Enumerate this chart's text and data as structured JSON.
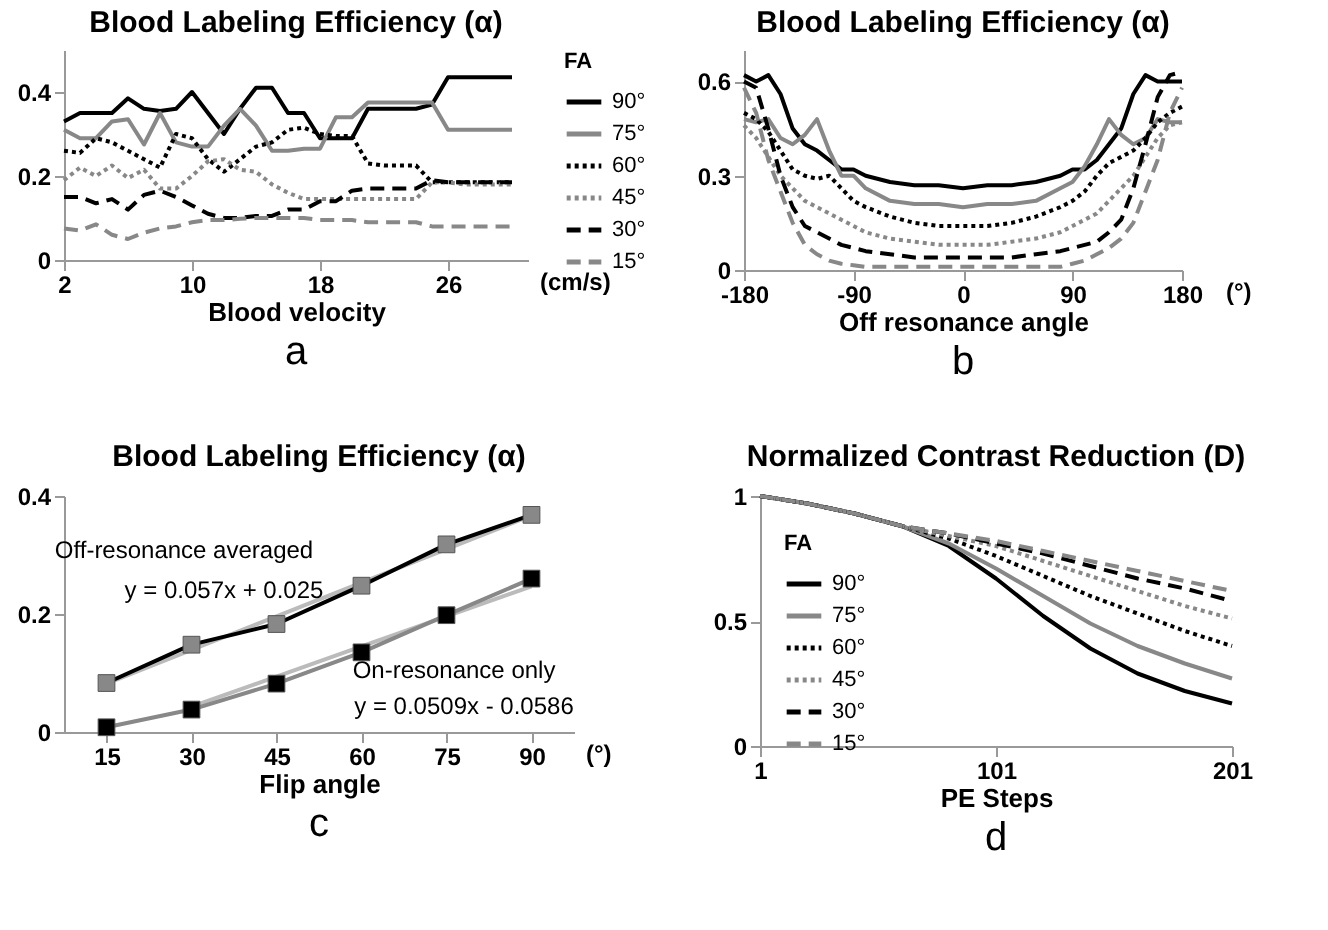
{
  "chart_data": [
    {
      "type": "line",
      "title": "Blood Labeling Efficiency (α)",
      "xlabel": "Blood velocity",
      "legend_title": "FA",
      "legend": "right",
      "xlim": [
        2,
        31
      ],
      "xticks": [
        2,
        10,
        18,
        26
      ],
      "ylim": [
        0,
        0.5
      ],
      "yticks": [
        0,
        0.2,
        0.4
      ],
      "annotations": [
        "(cm/s)",
        "a"
      ],
      "x": [
        2,
        3,
        4,
        5,
        6,
        7,
        8,
        9,
        10,
        11,
        12,
        13,
        14,
        15,
        16,
        17,
        18,
        19,
        20,
        21,
        22,
        23,
        24,
        25,
        26,
        27,
        28,
        29,
        30
      ],
      "series": [
        {
          "name": "90°",
          "color": "#000000",
          "line_style": "solid",
          "values": [
            0.33,
            0.35,
            0.35,
            0.35,
            0.385,
            0.36,
            0.355,
            0.36,
            0.4,
            0.35,
            0.3,
            0.36,
            0.41,
            0.41,
            0.35,
            0.35,
            0.29,
            0.29,
            0.29,
            0.36,
            0.36,
            0.36,
            0.36,
            0.37,
            0.435,
            0.435,
            0.435,
            0.435,
            0.435
          ]
        },
        {
          "name": "75°",
          "color": "#888888",
          "line_style": "solid",
          "values": [
            0.31,
            0.29,
            0.29,
            0.33,
            0.335,
            0.275,
            0.35,
            0.28,
            0.27,
            0.27,
            0.32,
            0.36,
            0.32,
            0.26,
            0.26,
            0.265,
            0.265,
            0.34,
            0.34,
            0.375,
            0.375,
            0.375,
            0.375,
            0.375,
            0.31,
            0.31,
            0.31,
            0.31,
            0.31
          ]
        },
        {
          "name": "60°",
          "color": "#000000",
          "line_style": "dotted",
          "values": [
            0.26,
            0.255,
            0.29,
            0.28,
            0.26,
            0.24,
            0.22,
            0.3,
            0.29,
            0.24,
            0.21,
            0.24,
            0.27,
            0.28,
            0.31,
            0.315,
            0.3,
            0.295,
            0.295,
            0.23,
            0.225,
            0.225,
            0.225,
            0.185,
            0.185,
            0.185,
            0.185,
            0.185,
            0.185
          ]
        },
        {
          "name": "45°",
          "color": "#888888",
          "line_style": "dotted",
          "values": [
            0.19,
            0.22,
            0.2,
            0.225,
            0.195,
            0.215,
            0.17,
            0.17,
            0.2,
            0.235,
            0.24,
            0.215,
            0.21,
            0.18,
            0.16,
            0.145,
            0.145,
            0.145,
            0.145,
            0.145,
            0.145,
            0.145,
            0.145,
            0.185,
            0.185,
            0.18,
            0.18,
            0.18,
            0.18
          ]
        },
        {
          "name": "30°",
          "color": "#000000",
          "line_style": "dashed",
          "values": [
            0.15,
            0.15,
            0.135,
            0.145,
            0.12,
            0.155,
            0.165,
            0.15,
            0.13,
            0.11,
            0.1,
            0.1,
            0.105,
            0.105,
            0.12,
            0.12,
            0.14,
            0.14,
            0.165,
            0.17,
            0.17,
            0.17,
            0.17,
            0.19,
            0.185,
            0.185,
            0.185,
            0.185,
            0.185
          ]
        },
        {
          "name": "15°",
          "color": "#888888",
          "line_style": "dashed",
          "values": [
            0.075,
            0.07,
            0.085,
            0.06,
            0.05,
            0.065,
            0.075,
            0.08,
            0.09,
            0.095,
            0.095,
            0.098,
            0.1,
            0.1,
            0.1,
            0.1,
            0.095,
            0.095,
            0.095,
            0.09,
            0.09,
            0.09,
            0.09,
            0.08,
            0.08,
            0.08,
            0.08,
            0.08,
            0.08
          ]
        }
      ]
    },
    {
      "type": "line",
      "title": "Blood Labeling Efficiency (α)",
      "xlabel": "Off resonance angle",
      "xlim": [
        -180,
        180
      ],
      "xticks": [
        -180,
        -90,
        0,
        90,
        180
      ],
      "ylim": [
        0,
        0.7
      ],
      "yticks": [
        0,
        0.3,
        0.6
      ],
      "annotations": [
        "(°)",
        "b"
      ],
      "x": [
        -180,
        -170,
        -160,
        -150,
        -140,
        -130,
        -120,
        -110,
        -100,
        -90,
        -80,
        -60,
        -40,
        -20,
        0,
        20,
        40,
        60,
        80,
        90,
        100,
        110,
        120,
        130,
        140,
        150,
        160,
        170,
        180
      ],
      "series": [
        {
          "color": "#000000",
          "line_style": "solid",
          "values": [
            0.62,
            0.6,
            0.62,
            0.56,
            0.45,
            0.4,
            0.38,
            0.35,
            0.32,
            0.32,
            0.3,
            0.28,
            0.27,
            0.27,
            0.26,
            0.27,
            0.27,
            0.28,
            0.3,
            0.32,
            0.32,
            0.35,
            0.4,
            0.45,
            0.56,
            0.62,
            0.6,
            0.6,
            0.6
          ]
        },
        {
          "color": "#888888",
          "line_style": "solid",
          "values": [
            0.48,
            0.47,
            0.48,
            0.42,
            0.4,
            0.43,
            0.48,
            0.38,
            0.3,
            0.3,
            0.26,
            0.22,
            0.21,
            0.21,
            0.2,
            0.21,
            0.21,
            0.22,
            0.26,
            0.28,
            0.33,
            0.4,
            0.48,
            0.43,
            0.4,
            0.42,
            0.48,
            0.47,
            0.47
          ]
        },
        {
          "color": "#000000",
          "line_style": "dotted",
          "values": [
            0.5,
            0.48,
            0.44,
            0.38,
            0.32,
            0.3,
            0.29,
            0.3,
            0.26,
            0.22,
            0.2,
            0.17,
            0.15,
            0.14,
            0.14,
            0.14,
            0.15,
            0.17,
            0.2,
            0.22,
            0.25,
            0.3,
            0.34,
            0.36,
            0.38,
            0.42,
            0.47,
            0.5,
            0.52
          ]
        },
        {
          "color": "#888888",
          "line_style": "dotted",
          "values": [
            0.46,
            0.42,
            0.36,
            0.3,
            0.26,
            0.22,
            0.2,
            0.18,
            0.16,
            0.14,
            0.12,
            0.1,
            0.09,
            0.08,
            0.08,
            0.08,
            0.09,
            0.1,
            0.12,
            0.14,
            0.16,
            0.18,
            0.22,
            0.26,
            0.3,
            0.36,
            0.42,
            0.46,
            0.47
          ]
        },
        {
          "color": "#000000",
          "line_style": "dashed",
          "values": [
            0.6,
            0.58,
            0.45,
            0.3,
            0.2,
            0.14,
            0.12,
            0.1,
            0.08,
            0.07,
            0.06,
            0.05,
            0.04,
            0.04,
            0.04,
            0.04,
            0.04,
            0.05,
            0.06,
            0.07,
            0.08,
            0.09,
            0.12,
            0.16,
            0.26,
            0.4,
            0.55,
            0.62,
            0.63
          ]
        },
        {
          "color": "#888888",
          "line_style": "dashed",
          "values": [
            0.58,
            0.5,
            0.35,
            0.25,
            0.15,
            0.08,
            0.05,
            0.03,
            0.02,
            0.015,
            0.01,
            0.01,
            0.01,
            0.01,
            0.01,
            0.01,
            0.01,
            0.01,
            0.01,
            0.02,
            0.03,
            0.05,
            0.07,
            0.1,
            0.15,
            0.25,
            0.35,
            0.5,
            0.58
          ]
        }
      ]
    },
    {
      "type": "line",
      "title": "Blood Labeling Efficiency (α)",
      "xlabel": "Flip angle",
      "categories": [
        "15",
        "30",
        "45",
        "60",
        "75",
        "90"
      ],
      "ylim": [
        0,
        0.4
      ],
      "yticks": [
        0,
        0.2,
        0.4
      ],
      "annotations": [
        "Off-resonance averaged",
        "y = 0.057x + 0.025",
        "On-resonance only",
        "y = 0.0509x - 0.0586",
        "(°)",
        "c"
      ],
      "series": [
        {
          "color": "#bbbbbb",
          "line_style": "solid",
          "values": [
            0.082,
            0.139,
            0.196,
            0.253,
            0.31,
            0.367
          ]
        },
        {
          "color": "#bbbbbb",
          "line_style": "solid",
          "values": [
            null,
            0.043,
            0.094,
            0.145,
            0.196,
            0.247
          ]
        },
        {
          "color": "#000000",
          "line_style": "solid",
          "values": [
            0.083,
            0.148,
            0.183,
            0.248,
            0.318,
            0.368
          ]
        },
        {
          "type": "scatter",
          "color": "#888888",
          "marker": "square",
          "values": [
            0.083,
            0.148,
            0.183,
            0.248,
            0.318,
            0.368
          ]
        },
        {
          "color": "#888888",
          "line_style": "solid",
          "values": [
            0.008,
            0.038,
            0.082,
            0.135,
            0.198,
            0.26
          ]
        },
        {
          "type": "scatter",
          "color": "#000000",
          "marker": "square",
          "values": [
            0.008,
            0.038,
            0.082,
            0.135,
            0.198,
            0.26
          ]
        }
      ]
    },
    {
      "type": "line",
      "title": "Normalized Contrast Reduction (D)",
      "xlabel": "PE Steps",
      "legend_title": "FA",
      "legend": "left",
      "xlim": [
        1,
        201
      ],
      "xticks": [
        1,
        101,
        201
      ],
      "ylim": [
        0,
        1
      ],
      "yticks": [
        0,
        0.5,
        1
      ],
      "annotations": [
        "d"
      ],
      "x": [
        1,
        21,
        41,
        61,
        81,
        101,
        121,
        141,
        161,
        181,
        201
      ],
      "series": [
        {
          "name": "90°",
          "color": "#000000",
          "line_style": "solid",
          "values": [
            1,
            0.97,
            0.93,
            0.88,
            0.8,
            0.67,
            0.52,
            0.39,
            0.29,
            0.22,
            0.17
          ]
        },
        {
          "name": "75°",
          "color": "#888888",
          "line_style": "solid",
          "values": [
            1,
            0.97,
            0.93,
            0.88,
            0.81,
            0.71,
            0.6,
            0.49,
            0.4,
            0.33,
            0.27
          ]
        },
        {
          "name": "60°",
          "color": "#000000",
          "line_style": "dotted",
          "values": [
            1,
            0.97,
            0.93,
            0.88,
            0.83,
            0.76,
            0.68,
            0.6,
            0.53,
            0.46,
            0.4
          ]
        },
        {
          "name": "45°",
          "color": "#888888",
          "line_style": "dotted",
          "values": [
            1,
            0.97,
            0.93,
            0.88,
            0.84,
            0.8,
            0.74,
            0.68,
            0.62,
            0.56,
            0.51
          ]
        },
        {
          "name": "30°",
          "color": "#000000",
          "line_style": "dashed",
          "values": [
            1,
            0.97,
            0.93,
            0.88,
            0.85,
            0.81,
            0.77,
            0.72,
            0.67,
            0.63,
            0.58
          ]
        },
        {
          "name": "15°",
          "color": "#888888",
          "line_style": "dashed",
          "values": [
            1,
            0.97,
            0.93,
            0.88,
            0.85,
            0.82,
            0.78,
            0.74,
            0.7,
            0.66,
            0.62
          ]
        }
      ]
    }
  ]
}
